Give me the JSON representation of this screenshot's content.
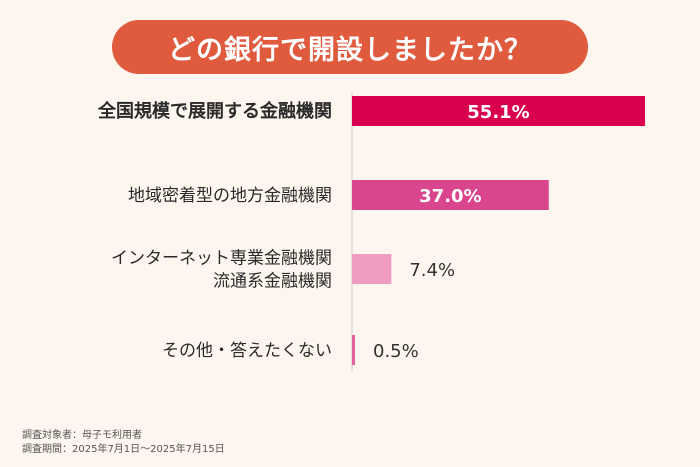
{
  "title": "どの銀行で開設しましたか？",
  "colors": {
    "title_bg": "#e05a3e",
    "background": "#fdf6ef",
    "axis": "#cccccc"
  },
  "chart_data": {
    "type": "bar",
    "orientation": "horizontal",
    "xlim": [
      0,
      55.1
    ],
    "unit": "%",
    "categories": [
      {
        "lines": [
          "全国規模で展開する金融機関"
        ],
        "value": 55.1,
        "label": "55.1%",
        "color": "#d8004f",
        "label_inside": true,
        "bold": true
      },
      {
        "lines": [
          "地域密着型の地方金融機関"
        ],
        "value": 37.0,
        "label": "37.0%",
        "color": "#d9468d",
        "label_inside": true,
        "bold": false
      },
      {
        "lines": [
          "インターネット専業金融機関",
          "流通系金融機関"
        ],
        "value": 7.4,
        "label": "7.4%",
        "color": "#ee9cc0",
        "label_inside": false,
        "bold": false
      },
      {
        "lines": [
          "その他・答えたくない"
        ],
        "value": 0.5,
        "label": "0.5%",
        "color": "#e2609b",
        "label_inside": false,
        "bold": false
      }
    ]
  },
  "footnotes": {
    "subject": "調査対象者：母子モ利用者",
    "period": "調査期間：2025年7月1日〜2025年7月15日"
  }
}
